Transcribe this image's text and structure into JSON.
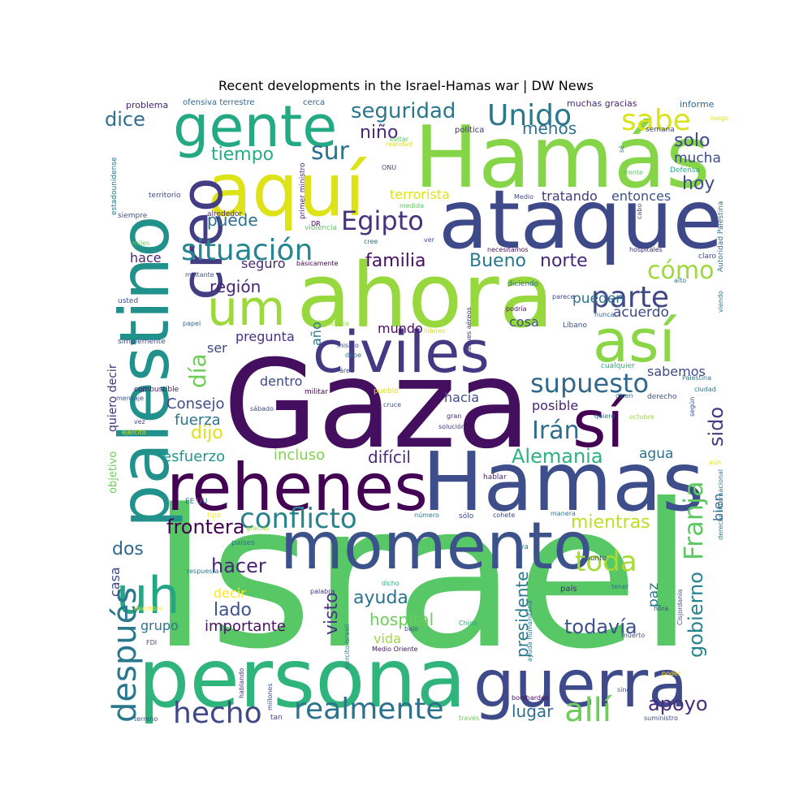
{
  "chart_data": {
    "type": "wordcloud",
    "title": "Recent developments in the Israel-Hamas war | DW News",
    "words": [
      {
        "text": "Israel",
        "weight": 100,
        "color": "#58c765"
      },
      {
        "text": "Gaza",
        "weight": 92,
        "color": "#440f5e"
      },
      {
        "text": "ahora",
        "weight": 78,
        "color": "#97d83e"
      },
      {
        "text": "Hamás",
        "weight": 74,
        "color": "#86d549"
      },
      {
        "text": "Hamas",
        "weight": 70,
        "color": "#3d4e8a"
      },
      {
        "text": "persona",
        "weight": 70,
        "color": "#2fb47c"
      },
      {
        "text": "ataque",
        "weight": 68,
        "color": "#3e4989"
      },
      {
        "text": "aquí",
        "weight": 62,
        "color": "#dde318"
      },
      {
        "text": "palestino",
        "weight": 62,
        "color": "#21918c"
      },
      {
        "text": "rehenes",
        "weight": 58,
        "color": "#440154"
      },
      {
        "text": "gente",
        "weight": 56,
        "color": "#23a983"
      },
      {
        "text": "momento",
        "weight": 56,
        "color": "#3b528b"
      },
      {
        "text": "guerra",
        "weight": 54,
        "color": "#3e4a89"
      },
      {
        "text": "civiles",
        "weight": 52,
        "color": "#443983"
      },
      {
        "text": "creo",
        "weight": 50,
        "color": "#433d84"
      },
      {
        "text": "así",
        "weight": 50,
        "color": "#8bd646"
      },
      {
        "text": "sí",
        "weight": 50,
        "color": "#440154"
      },
      {
        "text": "uh",
        "weight": 44,
        "color": "#22a785"
      },
      {
        "text": "um",
        "weight": 42,
        "color": "#9dd93b"
      },
      {
        "text": "Franja",
        "weight": 30,
        "color": "#5ec962"
      },
      {
        "text": "allí",
        "weight": 30,
        "color": "#6ccd5a"
      },
      {
        "text": "después",
        "weight": 30,
        "color": "#2a788e"
      },
      {
        "text": "situación",
        "weight": 28,
        "color": "#24868e"
      },
      {
        "text": "Unido",
        "weight": 28,
        "color": "#2a788e"
      },
      {
        "text": "sabe",
        "weight": 28,
        "color": "#dae319"
      },
      {
        "text": "hecho",
        "weight": 28,
        "color": "#3e4989"
      },
      {
        "text": "parte",
        "weight": 28,
        "color": "#3f4889"
      },
      {
        "text": "realmente",
        "weight": 27,
        "color": "#2c728e"
      },
      {
        "text": "conflicto",
        "weight": 27,
        "color": "#26828e"
      },
      {
        "text": "toda",
        "weight": 27,
        "color": "#a5db36"
      },
      {
        "text": "supuesto",
        "weight": 26,
        "color": "#31688e"
      },
      {
        "text": "Egipto",
        "weight": 25,
        "color": "#46327e"
      },
      {
        "text": "cómo",
        "weight": 24,
        "color": "#9dd93b"
      },
      {
        "text": "sur",
        "weight": 24,
        "color": "#2d708e"
      },
      {
        "text": "día",
        "weight": 22,
        "color": "#6ece58"
      },
      {
        "text": "Irán",
        "weight": 22,
        "color": "#2e6d8e"
      },
      {
        "text": "seguridad",
        "weight": 22,
        "color": "#2a788e"
      },
      {
        "text": "dice",
        "weight": 20,
        "color": "#2e6e8e"
      },
      {
        "text": "gobierno",
        "weight": 20,
        "color": "#25848e"
      },
      {
        "text": "Alemania",
        "weight": 20,
        "color": "#2db27d"
      },
      {
        "text": "sido",
        "weight": 20,
        "color": "#443a83"
      },
      {
        "text": "hacer",
        "weight": 20,
        "color": "#482677"
      },
      {
        "text": "frontera",
        "weight": 20,
        "color": "#440154"
      },
      {
        "text": "apoyo",
        "weight": 20,
        "color": "#472d7b"
      },
      {
        "text": "todavía",
        "weight": 20,
        "color": "#3b528b"
      },
      {
        "text": "ayuda",
        "weight": 20,
        "color": "#2c728e"
      },
      {
        "text": "visto",
        "weight": 20,
        "color": "#453781"
      },
      {
        "text": "Bueno",
        "weight": 18,
        "color": "#2a788e"
      },
      {
        "text": "norte",
        "weight": 18,
        "color": "#482878"
      },
      {
        "text": "familia",
        "weight": 18,
        "color": "#471063"
      },
      {
        "text": "dijo",
        "weight": 18,
        "color": "#dde318"
      },
      {
        "text": "tiempo",
        "weight": 18,
        "color": "#26ad81"
      },
      {
        "text": "puede",
        "weight": 18,
        "color": "#2c728e"
      },
      {
        "text": "niño",
        "weight": 18,
        "color": "#482979"
      },
      {
        "text": "menos",
        "weight": 18,
        "color": "#2c728e"
      },
      {
        "text": "hoy",
        "weight": 18,
        "color": "#3d4e8a"
      },
      {
        "text": "solo",
        "weight": 18,
        "color": "#3f4788"
      },
      {
        "text": "mientras",
        "weight": 18,
        "color": "#bddf26"
      },
      {
        "text": "lado",
        "weight": 17,
        "color": "#3b528b"
      },
      {
        "text": "hospital",
        "weight": 16,
        "color": "#6ccd5a"
      },
      {
        "text": "dos",
        "weight": 16,
        "color": "#31688e"
      },
      {
        "text": "lugar",
        "weight": 16,
        "color": "#2d708e"
      },
      {
        "text": "región",
        "weight": 16,
        "color": "#482475"
      },
      {
        "text": "presidente",
        "weight": 16,
        "color": "#2a788e"
      },
      {
        "text": "difícil",
        "weight": 16,
        "color": "#472c7a"
      },
      {
        "text": "incluso",
        "weight": 15,
        "color": "#84d44b"
      },
      {
        "text": "Consejo",
        "weight": 15,
        "color": "#3e4a89"
      },
      {
        "text": "fuerza",
        "weight": 15,
        "color": "#2c728e"
      },
      {
        "text": "esfuerzo",
        "weight": 15,
        "color": "#1f988b"
      },
      {
        "text": "importante",
        "weight": 15,
        "color": "#471164"
      },
      {
        "text": "tratando",
        "weight": 14,
        "color": "#443a83"
      },
      {
        "text": "entonces",
        "weight": 14,
        "color": "#3b528b"
      },
      {
        "text": "terrorista",
        "weight": 14,
        "color": "#dde318"
      },
      {
        "text": "pueden",
        "weight": 14,
        "color": "#2c728e"
      },
      {
        "text": "acuerdo",
        "weight": 14,
        "color": "#3e4989"
      },
      {
        "text": "mucha",
        "weight": 14,
        "color": "#3e4989"
      },
      {
        "text": "hace",
        "weight": 14,
        "color": "#482475"
      },
      {
        "text": "seguro",
        "weight": 14,
        "color": "#482878"
      },
      {
        "text": "hacia",
        "weight": 14,
        "color": "#3e4989"
      },
      {
        "text": "posible",
        "weight": 14,
        "color": "#482475"
      },
      {
        "text": "agua",
        "weight": 14,
        "color": "#2c728e"
      },
      {
        "text": "bien",
        "weight": 14,
        "color": "#31688e"
      },
      {
        "text": "paz",
        "weight": 14,
        "color": "#2a788e"
      },
      {
        "text": "cosa",
        "weight": 14,
        "color": "#3b528b"
      },
      {
        "text": "mundo",
        "weight": 14,
        "color": "#471063"
      },
      {
        "text": "dentro",
        "weight": 14,
        "color": "#3e4989"
      },
      {
        "text": "sabemos",
        "weight": 14,
        "color": "#3e4989"
      },
      {
        "text": "pregunta",
        "weight": 14,
        "color": "#46337f"
      },
      {
        "text": "casa",
        "weight": 14,
        "color": "#3e4989"
      },
      {
        "text": "grupo",
        "weight": 13,
        "color": "#2a788e"
      },
      {
        "text": "decir",
        "weight": 13,
        "color": "#fde725"
      },
      {
        "text": "ser",
        "weight": 13,
        "color": "#3e4989"
      },
      {
        "text": "año",
        "weight": 13,
        "color": "#2a788e"
      },
      {
        "text": "vida",
        "weight": 13,
        "color": "#9dd93b"
      },
      {
        "text": "quiero decir",
        "weight": 12,
        "color": "#46327e"
      },
      {
        "text": "objetivo",
        "weight": 11,
        "color": "#6ccd5a"
      },
      {
        "text": "problema",
        "weight": 10,
        "color": "#482475"
      },
      {
        "text": "ofensiva terrestre",
        "weight": 9,
        "color": "#31688e"
      },
      {
        "text": "cerca",
        "weight": 9,
        "color": "#31688e"
      },
      {
        "text": "muchas gracias",
        "weight": 9,
        "color": "#482878"
      },
      {
        "text": "informe",
        "weight": 9,
        "color": "#31688e"
      },
      {
        "text": "política",
        "weight": 9,
        "color": "#472c7a"
      },
      {
        "text": "semana",
        "weight": 9,
        "color": "#3e4989"
      },
      {
        "text": "luego",
        "weight": 8,
        "color": "#dde318"
      },
      {
        "text": "evitar",
        "weight": 8,
        "color": "#5ec962"
      },
      {
        "text": "realidad",
        "weight": 8,
        "color": "#dde318"
      },
      {
        "text": "primer ministro",
        "weight": 8,
        "color": "#482878"
      },
      {
        "text": "estadounidense",
        "weight": 8,
        "color": "#2a788e"
      },
      {
        "text": "territorio",
        "weight": 9,
        "color": "#3e4989"
      },
      {
        "text": "siempre",
        "weight": 9,
        "color": "#3b528b"
      },
      {
        "text": "alrededor",
        "weight": 9,
        "color": "#482878"
      },
      {
        "text": "violencia",
        "weight": 9,
        "color": "#5ec962"
      },
      {
        "text": "DR",
        "weight": 8,
        "color": "#440154"
      },
      {
        "text": "ONU",
        "weight": 8,
        "color": "#3e4989"
      },
      {
        "text": "medida",
        "weight": 8,
        "color": "#5ec962"
      },
      {
        "text": "Medio",
        "weight": 8,
        "color": "#3e4989"
      },
      {
        "text": "Defensa",
        "weight": 9,
        "color": "#26ad81"
      },
      {
        "text": "frente",
        "weight": 8,
        "color": "#5ec962"
      },
      {
        "text": "sé",
        "weight": 8,
        "color": "#2a788e"
      },
      {
        "text": "cabo",
        "weight": 8,
        "color": "#3e4989"
      },
      {
        "text": "Autoridad Palestina",
        "weight": 8,
        "color": "#2a788e"
      },
      {
        "text": "miles",
        "weight": 8,
        "color": "#6ccd5a"
      },
      {
        "text": "cree",
        "weight": 8,
        "color": "#2c728e"
      },
      {
        "text": "ver",
        "weight": 8,
        "color": "#3b528b"
      },
      {
        "text": "necesitamos",
        "weight": 8,
        "color": "#471063"
      },
      {
        "text": "hospitales",
        "weight": 8,
        "color": "#482878"
      },
      {
        "text": "claro",
        "weight": 9,
        "color": "#3e4989"
      },
      {
        "text": "básicamente",
        "weight": 8,
        "color": "#440154"
      },
      {
        "text": "militante",
        "weight": 8,
        "color": "#3b528b"
      },
      {
        "text": "alto",
        "weight": 8,
        "color": "#2a788e"
      },
      {
        "text": "diciendo",
        "weight": 9,
        "color": "#31688e"
      },
      {
        "text": "usted",
        "weight": 9,
        "color": "#3b528b"
      },
      {
        "text": "parece",
        "weight": 8,
        "color": "#3e4989"
      },
      {
        "text": "viendo",
        "weight": 8,
        "color": "#2a788e"
      },
      {
        "text": "ataques aéreos",
        "weight": 8,
        "color": "#46327e"
      },
      {
        "text": "podría",
        "weight": 8,
        "color": "#471063"
      },
      {
        "text": "nunca",
        "weight": 8,
        "color": "#31688e"
      },
      {
        "text": "papel",
        "weight": 8,
        "color": "#31688e"
      },
      {
        "text": "historia",
        "weight": 8,
        "color": "#9dd93b"
      },
      {
        "text": "líderes",
        "weight": 8,
        "color": "#dde318"
      },
      {
        "text": "Líbano",
        "weight": 8,
        "color": "#3b528b"
      },
      {
        "text": "simplemente",
        "weight": 9,
        "color": "#3e4989"
      },
      {
        "text": "mismo",
        "weight": 8,
        "color": "#3e4989"
      },
      {
        "text": "debe",
        "weight": 8,
        "color": "#31688e"
      },
      {
        "text": "área",
        "weight": 8,
        "color": "#3b528b"
      },
      {
        "text": "cualquier",
        "weight": 9,
        "color": "#26ad81"
      },
      {
        "text": "Palestina",
        "weight": 8,
        "color": "#2a788e"
      },
      {
        "text": "combustible",
        "weight": 9,
        "color": "#471063"
      },
      {
        "text": "mensaje",
        "weight": 8,
        "color": "#3b528b"
      },
      {
        "text": "militar",
        "weight": 9,
        "color": "#440154"
      },
      {
        "text": "pueblo",
        "weight": 9,
        "color": "#dde318"
      },
      {
        "text": "cruce",
        "weight": 8,
        "color": "#3b528b"
      },
      {
        "text": "dicen",
        "weight": 8,
        "color": "#2a788e"
      },
      {
        "text": "derecho",
        "weight": 9,
        "color": "#3b528b"
      },
      {
        "text": "ciudad",
        "weight": 8,
        "color": "#2a788e"
      },
      {
        "text": "sábado",
        "weight": 8,
        "color": "#3e4989"
      },
      {
        "text": "gran",
        "weight": 8,
        "color": "#482878"
      },
      {
        "text": "quiere",
        "weight": 8,
        "color": "#2a788e"
      },
      {
        "text": "según",
        "weight": 8,
        "color": "#3b528b"
      },
      {
        "text": "vez",
        "weight": 8,
        "color": "#3e4989"
      },
      {
        "text": "ejército",
        "weight": 8,
        "color": "#dde318"
      },
      {
        "text": "solución",
        "weight": 8,
        "color": "#46327e"
      },
      {
        "text": "octubre",
        "weight": 8,
        "color": "#9dd93b"
      },
      {
        "text": "aún",
        "weight": 8,
        "color": "#dde318"
      },
      {
        "text": "hablar",
        "weight": 9,
        "color": "#482878"
      },
      {
        "text": "EE UU",
        "weight": 9,
        "color": "#2c728e"
      },
      {
        "text": "tipo",
        "weight": 9,
        "color": "#fde725"
      },
      {
        "text": "número",
        "weight": 8,
        "color": "#2a788e"
      },
      {
        "text": "sólo",
        "weight": 9,
        "color": "#3e4989"
      },
      {
        "text": "cohete",
        "weight": 8,
        "color": "#3e4989"
      },
      {
        "text": "manera",
        "weight": 8,
        "color": "#2a788e"
      },
      {
        "text": "gracias",
        "weight": 8,
        "color": "#9dd93b"
      },
      {
        "text": "países",
        "weight": 9,
        "color": "#2c728e"
      },
      {
        "text": "va",
        "weight": 9,
        "color": "#2a788e"
      },
      {
        "text": "punto",
        "weight": 9,
        "color": "#3e4989"
      },
      {
        "text": "derecho internacional",
        "weight": 8,
        "color": "#2a788e"
      },
      {
        "text": "respuesta",
        "weight": 8,
        "color": "#2a788e"
      },
      {
        "text": "ejército israelí",
        "weight": 8,
        "color": "#2a788e"
      },
      {
        "text": "dicho",
        "weight": 8,
        "color": "#26ad81"
      },
      {
        "text": "país",
        "weight": 10,
        "color": "#482878"
      },
      {
        "text": "tener",
        "weight": 8,
        "color": "#2c728e"
      },
      {
        "text": "palabra",
        "weight": 8,
        "color": "#46327e"
      },
      {
        "text": "ayuda humanitaria",
        "weight": 8,
        "color": "#2a788e"
      },
      {
        "text": "hora",
        "weight": 8,
        "color": "#3e4989"
      },
      {
        "text": "Cisjordania",
        "weight": 8,
        "color": "#3b528b"
      },
      {
        "text": "miembro",
        "weight": 8,
        "color": "#fde725"
      },
      {
        "text": "bajo",
        "weight": 8,
        "color": "#3b528b"
      },
      {
        "text": "China",
        "weight": 8,
        "color": "#26ad81"
      },
      {
        "text": "muerto",
        "weight": 8,
        "color": "#3b528b"
      },
      {
        "text": "FDI",
        "weight": 8,
        "color": "#3e4989"
      },
      {
        "text": "hablando",
        "weight": 8,
        "color": "#482878"
      },
      {
        "text": "Medio Oriente",
        "weight": 8,
        "color": "#471063"
      },
      {
        "text": "poder",
        "weight": 8,
        "color": "#fde725"
      },
      {
        "text": "millones",
        "weight": 8,
        "color": "#3b528b"
      },
      {
        "text": "sino",
        "weight": 8,
        "color": "#3b528b"
      },
      {
        "text": "bombardeo",
        "weight": 8,
        "color": "#471063"
      },
      {
        "text": "terreno",
        "weight": 8,
        "color": "#3b528b"
      },
      {
        "text": "tan",
        "weight": 9,
        "color": "#3e4989"
      },
      {
        "text": "través",
        "weight": 8,
        "color": "#6ccd5a"
      },
      {
        "text": "suministro",
        "weight": 8,
        "color": "#3e4989"
      }
    ]
  }
}
